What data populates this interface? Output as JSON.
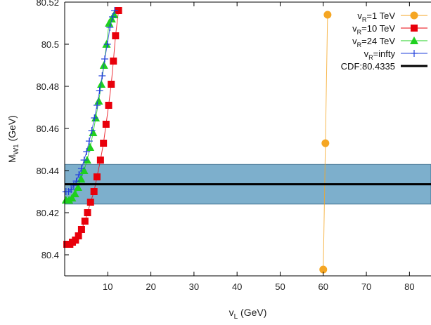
{
  "chart_data": {
    "type": "scatter",
    "xlabel": "v",
    "xlabel_sub": "L",
    "xlabel_unit": " (GeV)",
    "ylabel": "M",
    "ylabel_sub": "W1",
    "ylabel_unit": " (GeV)",
    "xlim": [
      0,
      85
    ],
    "ylim": [
      80.39,
      80.52
    ],
    "x_ticks": [
      10,
      20,
      30,
      40,
      50,
      60,
      70,
      80
    ],
    "y_ticks": [
      80.4,
      80.42,
      80.44,
      80.46,
      80.48,
      80.5,
      80.52
    ],
    "band": {
      "low": 80.4241,
      "high": 80.4429,
      "center": 80.4335,
      "color": "#6fa6c6"
    },
    "series": [
      {
        "name": "1 TeV",
        "legend_prefix": "v",
        "legend_sub": "R",
        "legend_suffix": "=1 TeV",
        "marker": "circle",
        "color": "#f5a623",
        "x": [
          60.0,
          60.5,
          61.0
        ],
        "y": [
          80.393,
          80.453,
          80.514
        ]
      },
      {
        "name": "10 TeV",
        "legend_prefix": "v",
        "legend_sub": "R",
        "legend_suffix": "=10 TeV",
        "marker": "square",
        "color": "#e8000b",
        "x": [
          0.5,
          1.2,
          1.8,
          2.5,
          3.2,
          3.9,
          4.7,
          5.3,
          6.0,
          6.8,
          7.5,
          8.3,
          9.0,
          9.6,
          10.2,
          10.8,
          11.3,
          11.8,
          12.5
        ],
        "y": [
          80.405,
          80.405,
          80.406,
          80.407,
          80.409,
          80.412,
          80.416,
          80.42,
          80.425,
          80.43,
          80.437,
          80.445,
          80.453,
          80.462,
          80.471,
          80.481,
          80.492,
          80.504,
          80.516
        ]
      },
      {
        "name": "24 TeV",
        "legend_prefix": "v",
        "legend_sub": "R",
        "legend_suffix": "=24 TeV",
        "marker": "triangle",
        "color": "#1fd01f",
        "x": [
          0.3,
          1.0,
          1.7,
          2.4,
          3.1,
          3.8,
          4.5,
          5.2,
          5.9,
          6.6,
          7.2,
          7.9,
          8.5,
          9.1,
          9.7,
          10.3,
          10.9,
          11.5
        ],
        "y": [
          80.426,
          80.426,
          80.427,
          80.429,
          80.432,
          80.436,
          80.44,
          80.445,
          80.451,
          80.458,
          80.465,
          80.473,
          80.481,
          80.49,
          80.5,
          80.51,
          80.512,
          80.514
        ]
      },
      {
        "name": "infty",
        "legend_prefix": "v",
        "legend_sub": "R",
        "legend_suffix": "=infty",
        "marker": "plus",
        "color": "#1f3fdb",
        "x": [
          0.3,
          0.9,
          1.5,
          2.1,
          2.7,
          3.3,
          3.9,
          4.5,
          5.1,
          5.7,
          6.3,
          6.9,
          7.5,
          8.1,
          8.7,
          9.3,
          9.9,
          10.5,
          11.1,
          11.6
        ],
        "y": [
          80.43,
          80.43,
          80.431,
          80.433,
          80.435,
          80.438,
          80.441,
          80.445,
          80.449,
          80.454,
          80.459,
          80.465,
          80.471,
          80.478,
          80.485,
          80.493,
          80.5,
          80.508,
          80.513,
          80.516
        ]
      },
      {
        "name": "CDF:80.4335",
        "legend_text": "CDF:80.4335",
        "marker": "line",
        "color": "#000000",
        "y": [
          80.4335
        ]
      }
    ],
    "legend_position": "top-right",
    "grid": false
  }
}
